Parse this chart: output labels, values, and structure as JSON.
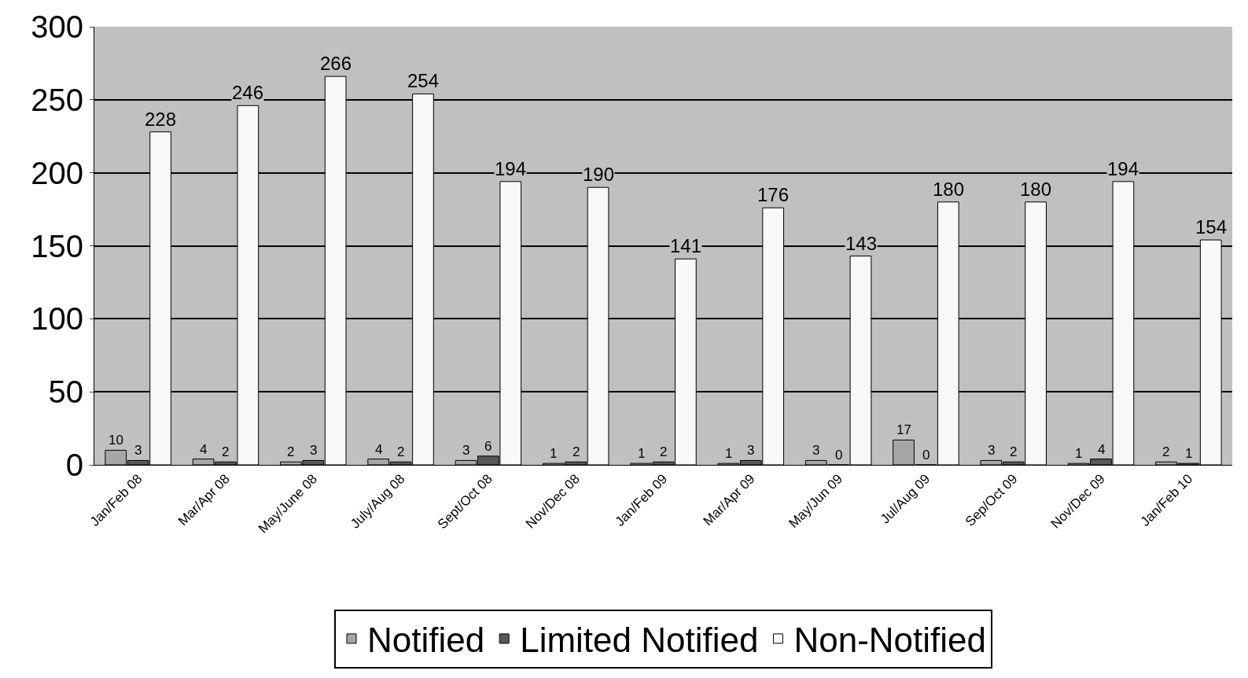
{
  "chart_data": {
    "type": "bar",
    "categories": [
      "Jan/Feb 08",
      "Mar/Apr 08",
      "May/June 08",
      "July/Aug 08",
      "Sept/Oct 08",
      "Nov/Dec 08",
      "Jan/Feb 09",
      "Mar/Apr 09",
      "May/Jun 09",
      "Jul/Aug 09",
      "Sep/Oct 09",
      "Nov/Dec 09",
      "Jan/Feb 10"
    ],
    "series": [
      {
        "name": "Notified",
        "color": "#a6a6a6",
        "values": [
          10,
          4,
          2,
          4,
          3,
          1,
          1,
          1,
          3,
          17,
          3,
          1,
          2
        ]
      },
      {
        "name": "Limited Notified",
        "color": "#595959",
        "values": [
          3,
          2,
          3,
          2,
          6,
          2,
          2,
          3,
          0,
          0,
          2,
          4,
          1
        ]
      },
      {
        "name": "Non-Notified",
        "color": "#f8f8f8",
        "values": [
          228,
          246,
          266,
          254,
          194,
          190,
          141,
          176,
          143,
          180,
          180,
          194,
          154
        ]
      }
    ],
    "ylim": [
      0,
      300
    ],
    "yticks": [
      0,
      50,
      100,
      150,
      200,
      250,
      300
    ],
    "grid": "y",
    "legend": "bottom",
    "data_labels": true
  }
}
